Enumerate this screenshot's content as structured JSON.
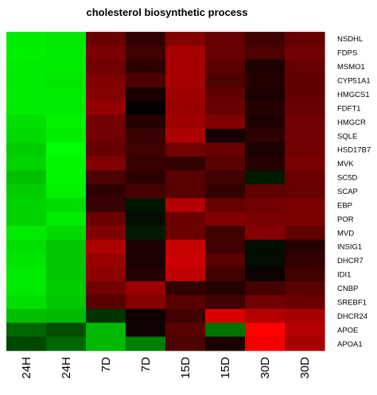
{
  "chart_data": {
    "type": "heatmap",
    "title": "cholesterol biosynthetic process",
    "columns": [
      "24H",
      "24H",
      "7D",
      "7D",
      "15D",
      "15D",
      "30D",
      "30D"
    ],
    "rows": [
      "NSDHL",
      "FDPS",
      "MSMO1",
      "CYP51A1",
      "HMGCS1",
      "FDFT1",
      "HMGCR",
      "SQLE",
      "HSD17B7",
      "MVK",
      "SC5D",
      "SCAP",
      "EBP",
      "POR",
      "MVD",
      "INSIG1",
      "DHCR7",
      "IDI1",
      "CNBP",
      "SREBF1",
      "DHCR24",
      "APOE",
      "APOA1"
    ],
    "values": [
      [
        -0.93,
        -0.91,
        0.42,
        0.2,
        0.52,
        0.4,
        0.25,
        0.4
      ],
      [
        -0.94,
        -0.92,
        0.48,
        0.25,
        0.65,
        0.4,
        0.3,
        0.45
      ],
      [
        -0.93,
        -0.92,
        0.45,
        0.18,
        0.65,
        0.35,
        0.12,
        0.4
      ],
      [
        -0.92,
        -0.9,
        0.5,
        0.3,
        0.65,
        0.3,
        0.15,
        0.38
      ],
      [
        -0.93,
        -0.92,
        0.52,
        0.1,
        0.62,
        0.38,
        0.1,
        0.38
      ],
      [
        -0.92,
        -0.92,
        0.58,
        0.02,
        0.6,
        0.4,
        0.15,
        0.4
      ],
      [
        -0.88,
        -0.95,
        0.45,
        0.15,
        0.62,
        0.5,
        0.12,
        0.45
      ],
      [
        -0.85,
        -0.93,
        0.45,
        0.22,
        0.68,
        0.08,
        0.18,
        0.45
      ],
      [
        -0.8,
        -1.0,
        0.4,
        0.25,
        0.45,
        0.4,
        0.1,
        0.45
      ],
      [
        -0.83,
        -0.97,
        0.5,
        0.22,
        0.2,
        0.35,
        0.15,
        0.48
      ],
      [
        -0.75,
        -0.97,
        0.3,
        0.18,
        0.35,
        0.25,
        -0.1,
        0.42
      ],
      [
        -0.8,
        -0.95,
        0.18,
        0.28,
        0.35,
        0.2,
        0.38,
        0.4
      ],
      [
        -0.83,
        -0.87,
        0.22,
        -0.08,
        0.7,
        0.4,
        0.45,
        0.48
      ],
      [
        -0.82,
        -0.93,
        0.42,
        -0.05,
        0.42,
        0.5,
        0.48,
        0.48
      ],
      [
        -0.92,
        -0.85,
        0.5,
        -0.1,
        0.42,
        0.25,
        0.52,
        0.38
      ],
      [
        -0.88,
        -0.78,
        0.68,
        0.1,
        0.78,
        0.25,
        -0.05,
        0.15
      ],
      [
        -0.9,
        -0.78,
        0.6,
        0.1,
        0.8,
        0.35,
        -0.05,
        0.2
      ],
      [
        -0.92,
        -0.78,
        0.55,
        0.15,
        0.75,
        0.25,
        0.05,
        0.25
      ],
      [
        -0.92,
        -0.8,
        0.45,
        0.6,
        0.2,
        0.15,
        0.28,
        0.35
      ],
      [
        -0.88,
        -0.78,
        0.35,
        0.52,
        0.35,
        0.25,
        0.45,
        0.42
      ],
      [
        -0.75,
        -0.72,
        -0.2,
        0.05,
        0.25,
        0.85,
        0.7,
        0.65
      ],
      [
        -0.4,
        -0.3,
        -0.72,
        0.05,
        0.35,
        -0.45,
        1.0,
        0.7
      ],
      [
        -0.28,
        -0.4,
        -0.72,
        -0.5,
        0.3,
        0.1,
        0.95,
        0.65
      ]
    ],
    "value_range": [
      -1,
      1
    ],
    "color_scale": {
      "low": "#00ff00",
      "mid": "#000000",
      "high": "#ff0000"
    },
    "row_labels_position": "right",
    "column_labels_position": "bottom",
    "column_label_orientation": "vertical"
  }
}
